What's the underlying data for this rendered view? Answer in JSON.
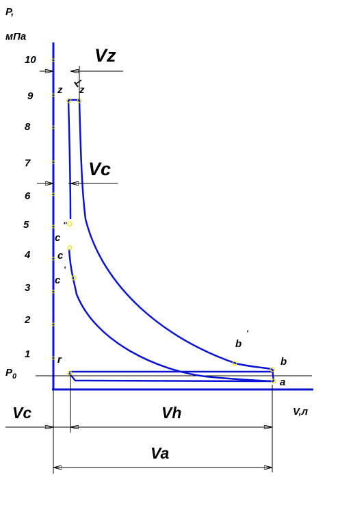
{
  "axes": {
    "y_label_line1": "P,",
    "y_label_line2": "мПа",
    "x_label": "V,л",
    "p0_label": "P",
    "p0_sub": "0",
    "y_ticks": [
      "10",
      "9",
      "8",
      "7",
      "6",
      "5",
      "4",
      "3",
      "2",
      "1"
    ]
  },
  "points": {
    "z": "z",
    "z_prime": "z",
    "c_double": "c",
    "c": "c",
    "c_prime": "c",
    "b_prime": "b",
    "b": "b",
    "a": "a",
    "r": "r"
  },
  "dimensions": {
    "vz": "Vz",
    "vc_top": "Vc",
    "vc_bottom": "Vc",
    "vh": "Vh",
    "va": "Va"
  },
  "colors": {
    "curve": "#0a14d2",
    "axis": "#0a14d2",
    "marker": "#e8e000",
    "dim_line": "#000000"
  }
}
